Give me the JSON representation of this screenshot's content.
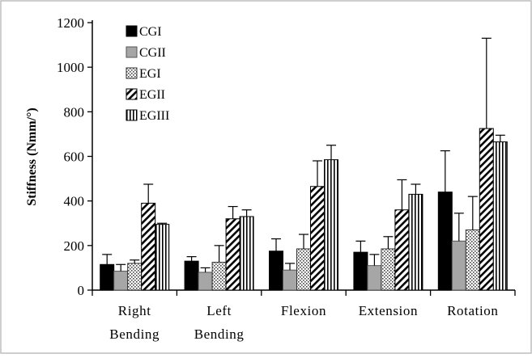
{
  "chart_data": {
    "type": "bar",
    "ylabel": "Stiffness (Nmm/°)",
    "ylim": [
      0,
      1200
    ],
    "yticks": [
      0,
      200,
      400,
      600,
      800,
      1000,
      1200
    ],
    "grid": false,
    "legend_position": "top-left",
    "categories": [
      [
        "Right",
        "Bending"
      ],
      [
        "Left",
        "Bending"
      ],
      [
        "Flexion"
      ],
      [
        "Extension"
      ],
      [
        "Rotation"
      ]
    ],
    "series": [
      {
        "name": "CGI",
        "pattern": "solid",
        "values": [
          115,
          130,
          175,
          170,
          440
        ],
        "errors": [
          45,
          20,
          55,
          50,
          185
        ]
      },
      {
        "name": "CGII",
        "pattern": "gray",
        "values": [
          85,
          80,
          90,
          110,
          220
        ],
        "errors": [
          30,
          20,
          30,
          50,
          125
        ]
      },
      {
        "name": "EGI",
        "pattern": "dots",
        "values": [
          120,
          125,
          185,
          185,
          270
        ],
        "errors": [
          15,
          75,
          65,
          55,
          150
        ]
      },
      {
        "name": "EGII",
        "pattern": "diagonal",
        "values": [
          390,
          320,
          465,
          360,
          725
        ],
        "errors": [
          85,
          55,
          115,
          135,
          405
        ]
      },
      {
        "name": "EGIII",
        "pattern": "vertical",
        "values": [
          295,
          330,
          585,
          430,
          665
        ],
        "errors": [
          5,
          30,
          65,
          45,
          30
        ]
      }
    ]
  }
}
